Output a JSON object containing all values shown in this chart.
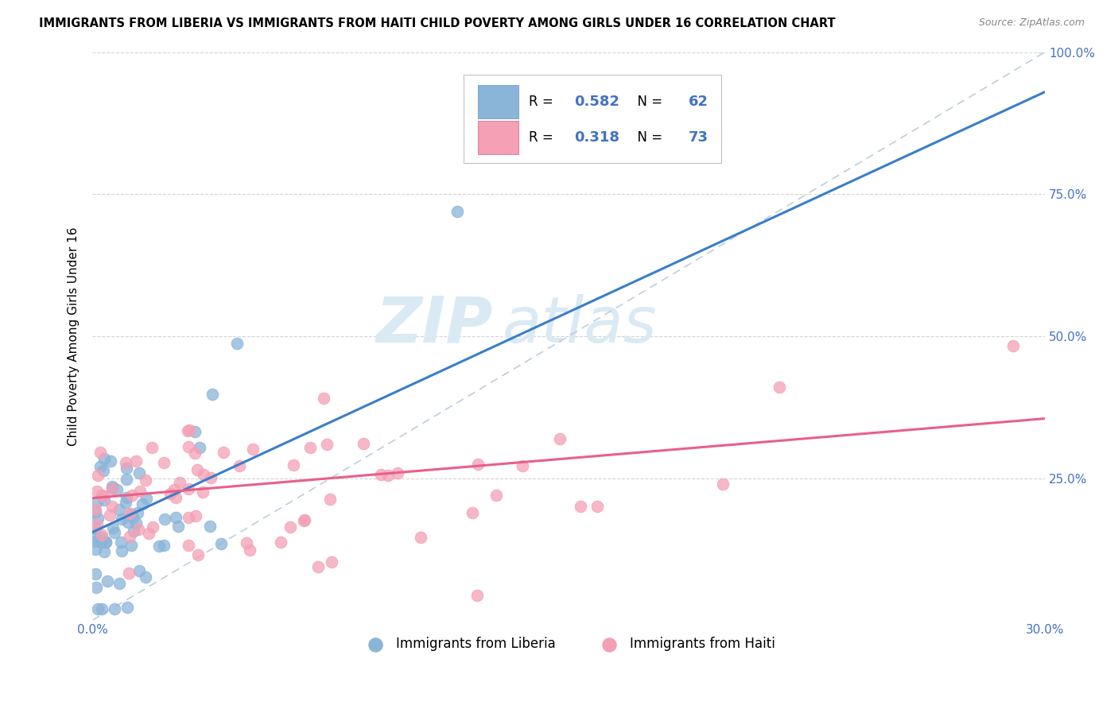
{
  "title": "IMMIGRANTS FROM LIBERIA VS IMMIGRANTS FROM HAITI CHILD POVERTY AMONG GIRLS UNDER 16 CORRELATION CHART",
  "source": "Source: ZipAtlas.com",
  "ylabel": "Child Poverty Among Girls Under 16",
  "xlabel_liberia": "Immigrants from Liberia",
  "xlabel_haiti": "Immigrants from Haiti",
  "xlim": [
    0.0,
    0.3
  ],
  "ylim": [
    0.0,
    1.0
  ],
  "liberia_R": 0.582,
  "liberia_N": 62,
  "haiti_R": 0.318,
  "haiti_N": 73,
  "liberia_color": "#8ab4d8",
  "haiti_color": "#f4a0b5",
  "liberia_line_color": "#3a7ec8",
  "haiti_line_color": "#e8608a",
  "ref_line_color": "#b8c8d8",
  "watermark_zip": "ZIP",
  "watermark_atlas": "atlas",
  "watermark_color": "#daeaf5",
  "legend_R_color": "#4472c4",
  "legend_N_color": "#4472c4",
  "tick_color": "#4472c4",
  "liberia_line_x0": 0.0,
  "liberia_line_y0": 0.155,
  "liberia_line_x1": 0.3,
  "liberia_line_y1": 0.93,
  "haiti_line_x0": 0.0,
  "haiti_line_y0": 0.215,
  "haiti_line_x1": 0.3,
  "haiti_line_y1": 0.355
}
